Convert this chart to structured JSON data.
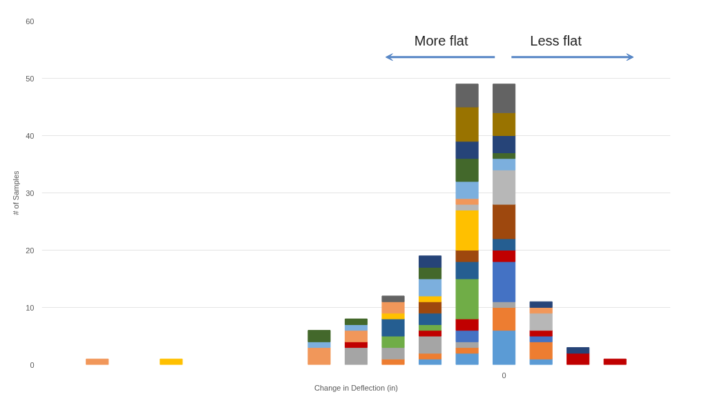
{
  "chart_data": {
    "type": "bar",
    "stacked": true,
    "xlabel": "Change in Deflection (in)",
    "ylabel": "# of Samples",
    "categories": [
      null,
      null,
      null,
      null,
      null,
      null,
      null,
      null,
      null,
      null,
      null,
      null,
      "0",
      null,
      null,
      null,
      null
    ],
    "ylim": [
      0,
      60
    ],
    "yticks": [
      0,
      10,
      20,
      30,
      40,
      50,
      60
    ],
    "grid": "y",
    "annotations": [
      "More flat",
      "Less flat"
    ],
    "series": [
      {
        "values": [
          null,
          1,
          null,
          1,
          null,
          null,
          null,
          3,
          3,
          1,
          1,
          2,
          6,
          1,
          2,
          1,
          null
        ],
        "colors": [
          null,
          "#f1975a",
          null,
          "#ffc000",
          null,
          null,
          null,
          "#f1975a",
          "#a5a5a5",
          "#ed7d31",
          "#5b9bd5",
          "#5b9bd5",
          "#5b9bd5",
          "#5b9bd5",
          "#c00000",
          "#c00000",
          null
        ]
      },
      {
        "values": [
          null,
          null,
          null,
          null,
          null,
          null,
          null,
          1,
          1,
          2,
          1,
          1,
          4,
          3,
          1,
          null,
          null
        ],
        "colors": [
          null,
          null,
          null,
          null,
          null,
          null,
          null,
          "#7cafdd",
          "#c00000",
          "#a5a5a5",
          "#ed7d31",
          "#ed7d31",
          "#ed7d31",
          "#ed7d31",
          "#264478",
          null,
          null
        ]
      },
      {
        "values": [
          null,
          null,
          null,
          null,
          null,
          null,
          null,
          2,
          2,
          2,
          3,
          1,
          1,
          1,
          null,
          null,
          null
        ],
        "colors": [
          null,
          null,
          null,
          null,
          null,
          null,
          null,
          "#43682b",
          "#f1975a",
          "#70ad47",
          "#a5a5a5",
          "#a5a5a5",
          "#a5a5a5",
          "#4472c4",
          null,
          null,
          null
        ]
      },
      {
        "values": [
          null,
          null,
          null,
          null,
          null,
          null,
          null,
          null,
          1,
          3,
          1,
          2,
          7,
          1,
          null,
          null,
          null
        ],
        "colors": [
          null,
          null,
          null,
          null,
          null,
          null,
          null,
          null,
          "#7cafdd",
          "#255e91",
          "#c00000",
          "#4472c4",
          "#4472c4",
          "#c00000",
          null,
          null,
          null
        ]
      },
      {
        "values": [
          null,
          null,
          null,
          null,
          null,
          null,
          null,
          null,
          1,
          1,
          1,
          2,
          2,
          3,
          null,
          null,
          null
        ],
        "colors": [
          null,
          null,
          null,
          null,
          null,
          null,
          null,
          null,
          "#43682b",
          "#ffc000",
          "#70ad47",
          "#c00000",
          "#c00000",
          "#b7b7b7",
          null,
          null,
          null
        ]
      },
      {
        "values": [
          null,
          null,
          null,
          null,
          null,
          null,
          null,
          null,
          null,
          2,
          2,
          7,
          2,
          1,
          null,
          null,
          null
        ],
        "colors": [
          null,
          null,
          null,
          null,
          null,
          null,
          null,
          null,
          null,
          "#f1975a",
          "#255e91",
          "#70ad47",
          "#255e91",
          "#f1975a",
          null,
          null,
          null
        ]
      },
      {
        "values": [
          null,
          null,
          null,
          null,
          null,
          null,
          null,
          null,
          null,
          1,
          2,
          3,
          6,
          1,
          null,
          null,
          null
        ],
        "colors": [
          null,
          null,
          null,
          null,
          null,
          null,
          null,
          null,
          null,
          "#636363",
          "#9e480e",
          "#255e91",
          "#9e480e",
          "#264478",
          null,
          null,
          null
        ]
      },
      {
        "values": [
          null,
          null,
          null,
          null,
          null,
          null,
          null,
          null,
          null,
          null,
          1,
          2,
          6,
          null,
          null,
          null,
          null
        ],
        "colors": [
          null,
          null,
          null,
          null,
          null,
          null,
          null,
          null,
          null,
          null,
          "#ffc000",
          "#9e480e",
          "#b7b7b7",
          null,
          null,
          null,
          null
        ]
      },
      {
        "values": [
          null,
          null,
          null,
          null,
          null,
          null,
          null,
          null,
          null,
          null,
          3,
          7,
          2,
          null,
          null,
          null,
          null
        ],
        "colors": [
          null,
          null,
          null,
          null,
          null,
          null,
          null,
          null,
          null,
          null,
          "#7cafdd",
          "#ffc000",
          "#7cafdd",
          null,
          null,
          null,
          null
        ]
      },
      {
        "values": [
          null,
          null,
          null,
          null,
          null,
          null,
          null,
          null,
          null,
          null,
          2,
          1,
          1,
          null,
          null,
          null,
          null
        ],
        "colors": [
          null,
          null,
          null,
          null,
          null,
          null,
          null,
          null,
          null,
          null,
          "#43682b",
          "#b7b7b7",
          "#43682b",
          null,
          null,
          null,
          null
        ]
      },
      {
        "values": [
          null,
          null,
          null,
          null,
          null,
          null,
          null,
          null,
          null,
          null,
          2,
          1,
          3,
          null,
          null,
          null,
          null
        ],
        "colors": [
          null,
          null,
          null,
          null,
          null,
          null,
          null,
          null,
          null,
          null,
          "#264478",
          "#f1975a",
          "#264478",
          null,
          null,
          null,
          null
        ]
      },
      {
        "values": [
          null,
          null,
          null,
          null,
          null,
          null,
          null,
          null,
          null,
          null,
          null,
          3,
          4,
          null,
          null,
          null,
          null
        ],
        "colors": [
          null,
          null,
          null,
          null,
          null,
          null,
          null,
          null,
          null,
          null,
          null,
          "#7cafdd",
          "#997300",
          null,
          null,
          null,
          null
        ]
      },
      {
        "values": [
          null,
          null,
          null,
          null,
          null,
          null,
          null,
          null,
          null,
          null,
          null,
          4,
          5,
          null,
          null,
          null,
          null
        ],
        "colors": [
          null,
          null,
          null,
          null,
          null,
          null,
          null,
          null,
          null,
          null,
          null,
          "#43682b",
          "#636363",
          null,
          null,
          null,
          null
        ]
      },
      {
        "values": [
          null,
          null,
          null,
          null,
          null,
          null,
          null,
          null,
          null,
          null,
          null,
          3,
          null,
          null,
          null,
          null,
          null
        ],
        "colors": [
          null,
          null,
          null,
          null,
          null,
          null,
          null,
          null,
          null,
          null,
          null,
          "#264478",
          null,
          null,
          null,
          null,
          null
        ]
      },
      {
        "values": [
          null,
          null,
          null,
          null,
          null,
          null,
          null,
          null,
          null,
          null,
          null,
          6,
          null,
          null,
          null,
          null,
          null
        ],
        "colors": [
          null,
          null,
          null,
          null,
          null,
          null,
          null,
          null,
          null,
          null,
          null,
          "#997300",
          null,
          null,
          null,
          null,
          null
        ]
      },
      {
        "values": [
          null,
          null,
          null,
          null,
          null,
          null,
          null,
          null,
          null,
          null,
          null,
          4,
          null,
          null,
          null,
          null,
          null
        ],
        "colors": [
          null,
          null,
          null,
          null,
          null,
          null,
          null,
          null,
          null,
          null,
          null,
          "#636363",
          null,
          null,
          null,
          null,
          null
        ]
      }
    ]
  }
}
